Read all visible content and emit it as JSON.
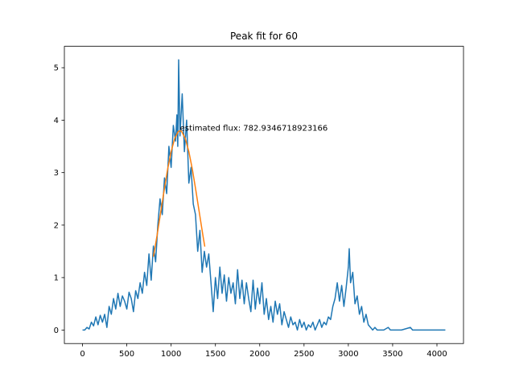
{
  "chart_data": {
    "type": "line",
    "title": "Peak fit for 60",
    "annotation": "estimated flux: 782.9346718923166",
    "annotation_x": 1100,
    "annotation_y": 3.8,
    "xlim": [
      -204.75,
      4299.75
    ],
    "ylim": [
      -0.2575,
      5.4075
    ],
    "xticks": [
      0,
      500,
      1000,
      1500,
      2000,
      2500,
      3000,
      3500,
      4000
    ],
    "yticks": [
      0,
      1,
      2,
      3,
      4,
      5
    ],
    "series": [
      {
        "color": "#1f77b4",
        "x": [
          0,
          25,
          50,
          75,
          100,
          125,
          150,
          175,
          200,
          225,
          250,
          275,
          300,
          325,
          350,
          375,
          400,
          425,
          450,
          475,
          500,
          525,
          550,
          575,
          600,
          625,
          650,
          675,
          700,
          725,
          750,
          775,
          800,
          825,
          850,
          875,
          900,
          925,
          950,
          975,
          1000,
          1025,
          1050,
          1065,
          1075,
          1085,
          1100,
          1125,
          1150,
          1175,
          1200,
          1225,
          1250,
          1275,
          1300,
          1325,
          1350,
          1375,
          1400,
          1425,
          1450,
          1475,
          1500,
          1525,
          1550,
          1575,
          1600,
          1625,
          1650,
          1675,
          1700,
          1725,
          1750,
          1775,
          1800,
          1825,
          1850,
          1875,
          1900,
          1925,
          1950,
          1975,
          2000,
          2025,
          2050,
          2075,
          2100,
          2125,
          2150,
          2175,
          2200,
          2225,
          2250,
          2275,
          2300,
          2325,
          2350,
          2375,
          2400,
          2425,
          2450,
          2475,
          2500,
          2525,
          2550,
          2575,
          2600,
          2625,
          2650,
          2675,
          2700,
          2725,
          2750,
          2775,
          2800,
          2825,
          2850,
          2875,
          2900,
          2925,
          2950,
          2975,
          3000,
          3010,
          3025,
          3050,
          3075,
          3100,
          3125,
          3150,
          3175,
          3200,
          3225,
          3250,
          3275,
          3300,
          3325,
          3400,
          3450,
          3475,
          3600,
          3700,
          3725,
          4095
        ],
        "values": [
          0,
          0,
          0.05,
          0.02,
          0.15,
          0.08,
          0.25,
          0.1,
          0.28,
          0.15,
          0.3,
          0.05,
          0.45,
          0.3,
          0.6,
          0.4,
          0.7,
          0.45,
          0.65,
          0.55,
          0.4,
          0.72,
          0.6,
          0.35,
          0.75,
          0.6,
          0.9,
          0.7,
          1.1,
          0.85,
          1.45,
          0.95,
          1.6,
          1.3,
          2.0,
          2.5,
          2.2,
          2.9,
          2.6,
          3.5,
          3.1,
          3.9,
          3.6,
          4.1,
          3.5,
          5.15,
          3.7,
          4.5,
          3.4,
          4.0,
          2.8,
          3.1,
          2.4,
          2.2,
          1.5,
          1.9,
          1.1,
          1.5,
          1.2,
          1.45,
          0.9,
          0.35,
          1.0,
          0.6,
          1.2,
          0.7,
          1.05,
          0.55,
          1.0,
          0.7,
          0.9,
          0.5,
          1.15,
          0.6,
          0.95,
          0.5,
          0.9,
          0.6,
          0.35,
          0.95,
          0.4,
          0.8,
          0.5,
          0.9,
          0.3,
          0.6,
          0.2,
          0.45,
          0.15,
          0.55,
          0.3,
          0.5,
          0.1,
          0.35,
          0.2,
          0.05,
          0.25,
          0.1,
          0.15,
          0,
          0.2,
          0.05,
          0.15,
          0,
          0.1,
          0.05,
          0.15,
          0,
          0.1,
          0.2,
          0.05,
          0.15,
          0.1,
          0.25,
          0.2,
          0.45,
          0.6,
          0.9,
          0.55,
          0.85,
          0.45,
          0.8,
          1.2,
          1.55,
          0.9,
          1.1,
          0.5,
          0.65,
          0.3,
          0.45,
          0.15,
          0.3,
          0.1,
          0.05,
          0,
          0.05,
          0,
          0,
          0.05,
          0,
          0,
          0.05,
          0,
          0
        ]
      },
      {
        "color": "#ff7f0e",
        "x": [
          800,
          840,
          880,
          920,
          960,
          1000,
          1040,
          1080,
          1100,
          1120,
          1160,
          1200,
          1240,
          1280,
          1320,
          1360,
          1380
        ],
        "values": [
          1.397,
          1.79,
          2.22,
          2.65,
          3.06,
          3.4,
          3.65,
          3.78,
          3.8,
          3.78,
          3.65,
          3.4,
          3.06,
          2.65,
          2.22,
          1.79,
          1.59
        ]
      }
    ]
  }
}
